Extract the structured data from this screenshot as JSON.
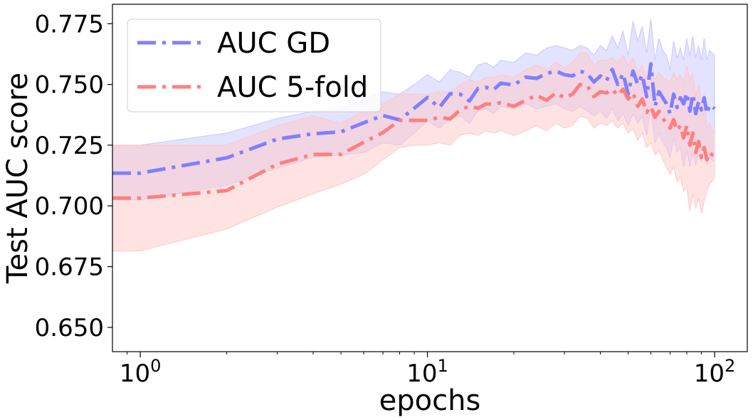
{
  "chart_data": {
    "type": "line",
    "xlabel": "epochs",
    "ylabel": "Test AUC score",
    "xscale": "log",
    "xlim": [
      0.8,
      130
    ],
    "ylim": [
      0.64,
      0.783
    ],
    "x_ticks": [
      {
        "value": 1,
        "base": "10",
        "exp": "0"
      },
      {
        "value": 10,
        "base": "10",
        "exp": "1"
      },
      {
        "value": 100,
        "base": "10",
        "exp": "2"
      }
    ],
    "y_ticks": [
      {
        "value": 0.65,
        "label": "0.650"
      },
      {
        "value": 0.675,
        "label": "0.675"
      },
      {
        "value": 0.7,
        "label": "0.700"
      },
      {
        "value": 0.725,
        "label": "0.725"
      },
      {
        "value": 0.75,
        "label": "0.750"
      },
      {
        "value": 0.775,
        "label": "0.775"
      }
    ],
    "grid": false,
    "legend_position": "top-left",
    "series": [
      {
        "name": "AUC GD",
        "color": "#7f7fff",
        "band_color": "#c8c8ff",
        "x": [
          0.8,
          1,
          2,
          3,
          4,
          5,
          6,
          7,
          8,
          9,
          10,
          11,
          12,
          13,
          14,
          15,
          16,
          17,
          18,
          20,
          22,
          24,
          26,
          28,
          30,
          32,
          34,
          36,
          38,
          40,
          42,
          44,
          46,
          48,
          50,
          52,
          54,
          56,
          58,
          60,
          62,
          64,
          66,
          68,
          70,
          72,
          74,
          76,
          78,
          80,
          82,
          84,
          86,
          88,
          90,
          92,
          94,
          96,
          98,
          100
        ],
        "y": [
          0.7135,
          0.7135,
          0.7198,
          0.7275,
          0.7297,
          0.7305,
          0.7342,
          0.7372,
          0.7354,
          0.7402,
          0.7446,
          0.7405,
          0.7462,
          0.746,
          0.7432,
          0.7484,
          0.7488,
          0.7478,
          0.7505,
          0.7498,
          0.753,
          0.7525,
          0.7545,
          0.7555,
          0.754,
          0.7535,
          0.7555,
          0.7545,
          0.751,
          0.7535,
          0.7515,
          0.7562,
          0.75,
          0.7545,
          0.746,
          0.7555,
          0.75,
          0.754,
          0.745,
          0.7585,
          0.741,
          0.747,
          0.7445,
          0.742,
          0.738,
          0.746,
          0.7405,
          0.7445,
          0.742,
          0.7465,
          0.739,
          0.746,
          0.738,
          0.743,
          0.7395,
          0.7445,
          0.738,
          0.7415,
          0.741,
          0.74
        ],
        "lower": [
          0.7025,
          0.7025,
          0.7085,
          0.7155,
          0.72,
          0.721,
          0.722,
          0.726,
          0.725,
          0.73,
          0.735,
          0.732,
          0.736,
          0.737,
          0.734,
          0.739,
          0.74,
          0.738,
          0.741,
          0.74,
          0.742,
          0.74,
          0.741,
          0.742,
          0.74,
          0.739,
          0.741,
          0.739,
          0.737,
          0.739,
          0.736,
          0.74,
          0.735,
          0.738,
          0.733,
          0.738,
          0.734,
          0.737,
          0.729,
          0.74,
          0.726,
          0.73,
          0.726,
          0.724,
          0.72,
          0.728,
          0.722,
          0.724,
          0.716,
          0.723,
          0.716,
          0.722,
          0.717,
          0.721,
          0.718,
          0.723,
          0.717,
          0.72,
          0.719,
          0.718
        ],
        "upper": [
          0.725,
          0.725,
          0.73,
          0.736,
          0.739,
          0.74,
          0.744,
          0.747,
          0.746,
          0.75,
          0.754,
          0.751,
          0.756,
          0.755,
          0.753,
          0.758,
          0.759,
          0.757,
          0.76,
          0.759,
          0.763,
          0.762,
          0.765,
          0.766,
          0.765,
          0.764,
          0.766,
          0.765,
          0.762,
          0.766,
          0.764,
          0.77,
          0.765,
          0.772,
          0.762,
          0.776,
          0.768,
          0.774,
          0.763,
          0.777,
          0.76,
          0.769,
          0.764,
          0.762,
          0.756,
          0.768,
          0.761,
          0.765,
          0.76,
          0.769,
          0.762,
          0.77,
          0.761,
          0.766,
          0.76,
          0.769,
          0.76,
          0.764,
          0.763,
          0.762
        ]
      },
      {
        "name": "AUC 5-fold",
        "color": "#ff7f7f",
        "band_color": "#ffc8c8",
        "x": [
          0.8,
          1,
          2,
          3,
          4,
          5,
          6,
          7,
          8,
          9,
          10,
          11,
          12,
          13,
          14,
          15,
          16,
          17,
          18,
          20,
          22,
          24,
          26,
          28,
          30,
          32,
          34,
          36,
          38,
          40,
          42,
          44,
          46,
          48,
          50,
          52,
          54,
          56,
          58,
          60,
          62,
          64,
          66,
          68,
          70,
          72,
          74,
          76,
          78,
          80,
          82,
          84,
          86,
          88,
          90,
          92,
          94,
          96,
          98,
          100
        ],
        "y": [
          0.7032,
          0.7032,
          0.7063,
          0.7172,
          0.7212,
          0.7212,
          0.7262,
          0.7302,
          0.7352,
          0.7352,
          0.7352,
          0.7365,
          0.7358,
          0.7395,
          0.741,
          0.7402,
          0.742,
          0.7418,
          0.7425,
          0.741,
          0.7435,
          0.7455,
          0.7435,
          0.7465,
          0.7445,
          0.746,
          0.75,
          0.7495,
          0.745,
          0.747,
          0.7465,
          0.748,
          0.7455,
          0.748,
          0.744,
          0.7465,
          0.741,
          0.744,
          0.7385,
          0.741,
          0.7365,
          0.739,
          0.736,
          0.734,
          0.732,
          0.7355,
          0.731,
          0.733,
          0.728,
          0.733,
          0.725,
          0.73,
          0.722,
          0.7265,
          0.72,
          0.724,
          0.719,
          0.722,
          0.721,
          0.721
        ],
        "lower": [
          0.6815,
          0.6815,
          0.6905,
          0.6995,
          0.705,
          0.709,
          0.713,
          0.719,
          0.724,
          0.725,
          0.725,
          0.726,
          0.725,
          0.729,
          0.73,
          0.729,
          0.731,
          0.73,
          0.731,
          0.729,
          0.731,
          0.733,
          0.731,
          0.734,
          0.732,
          0.733,
          0.737,
          0.736,
          0.732,
          0.734,
          0.733,
          0.735,
          0.732,
          0.734,
          0.73,
          0.732,
          0.727,
          0.73,
          0.724,
          0.726,
          0.721,
          0.723,
          0.719,
          0.716,
          0.713,
          0.716,
          0.71,
          0.712,
          0.706,
          0.708,
          0.698,
          0.705,
          0.699,
          0.703,
          0.697,
          0.702,
          0.706,
          0.709,
          0.71,
          0.712
        ],
        "upper": [
          0.725,
          0.725,
          0.725,
          0.733,
          0.737,
          0.734,
          0.739,
          0.742,
          0.746,
          0.746,
          0.746,
          0.747,
          0.747,
          0.75,
          0.752,
          0.751,
          0.753,
          0.753,
          0.754,
          0.753,
          0.756,
          0.758,
          0.756,
          0.759,
          0.757,
          0.759,
          0.763,
          0.763,
          0.758,
          0.76,
          0.76,
          0.761,
          0.759,
          0.762,
          0.758,
          0.761,
          0.755,
          0.758,
          0.753,
          0.756,
          0.752,
          0.755,
          0.753,
          0.752,
          0.751,
          0.755,
          0.752,
          0.754,
          0.75,
          0.758,
          0.752,
          0.755,
          0.745,
          0.75,
          0.743,
          0.746,
          0.732,
          0.734,
          0.732,
          0.73
        ]
      }
    ]
  }
}
